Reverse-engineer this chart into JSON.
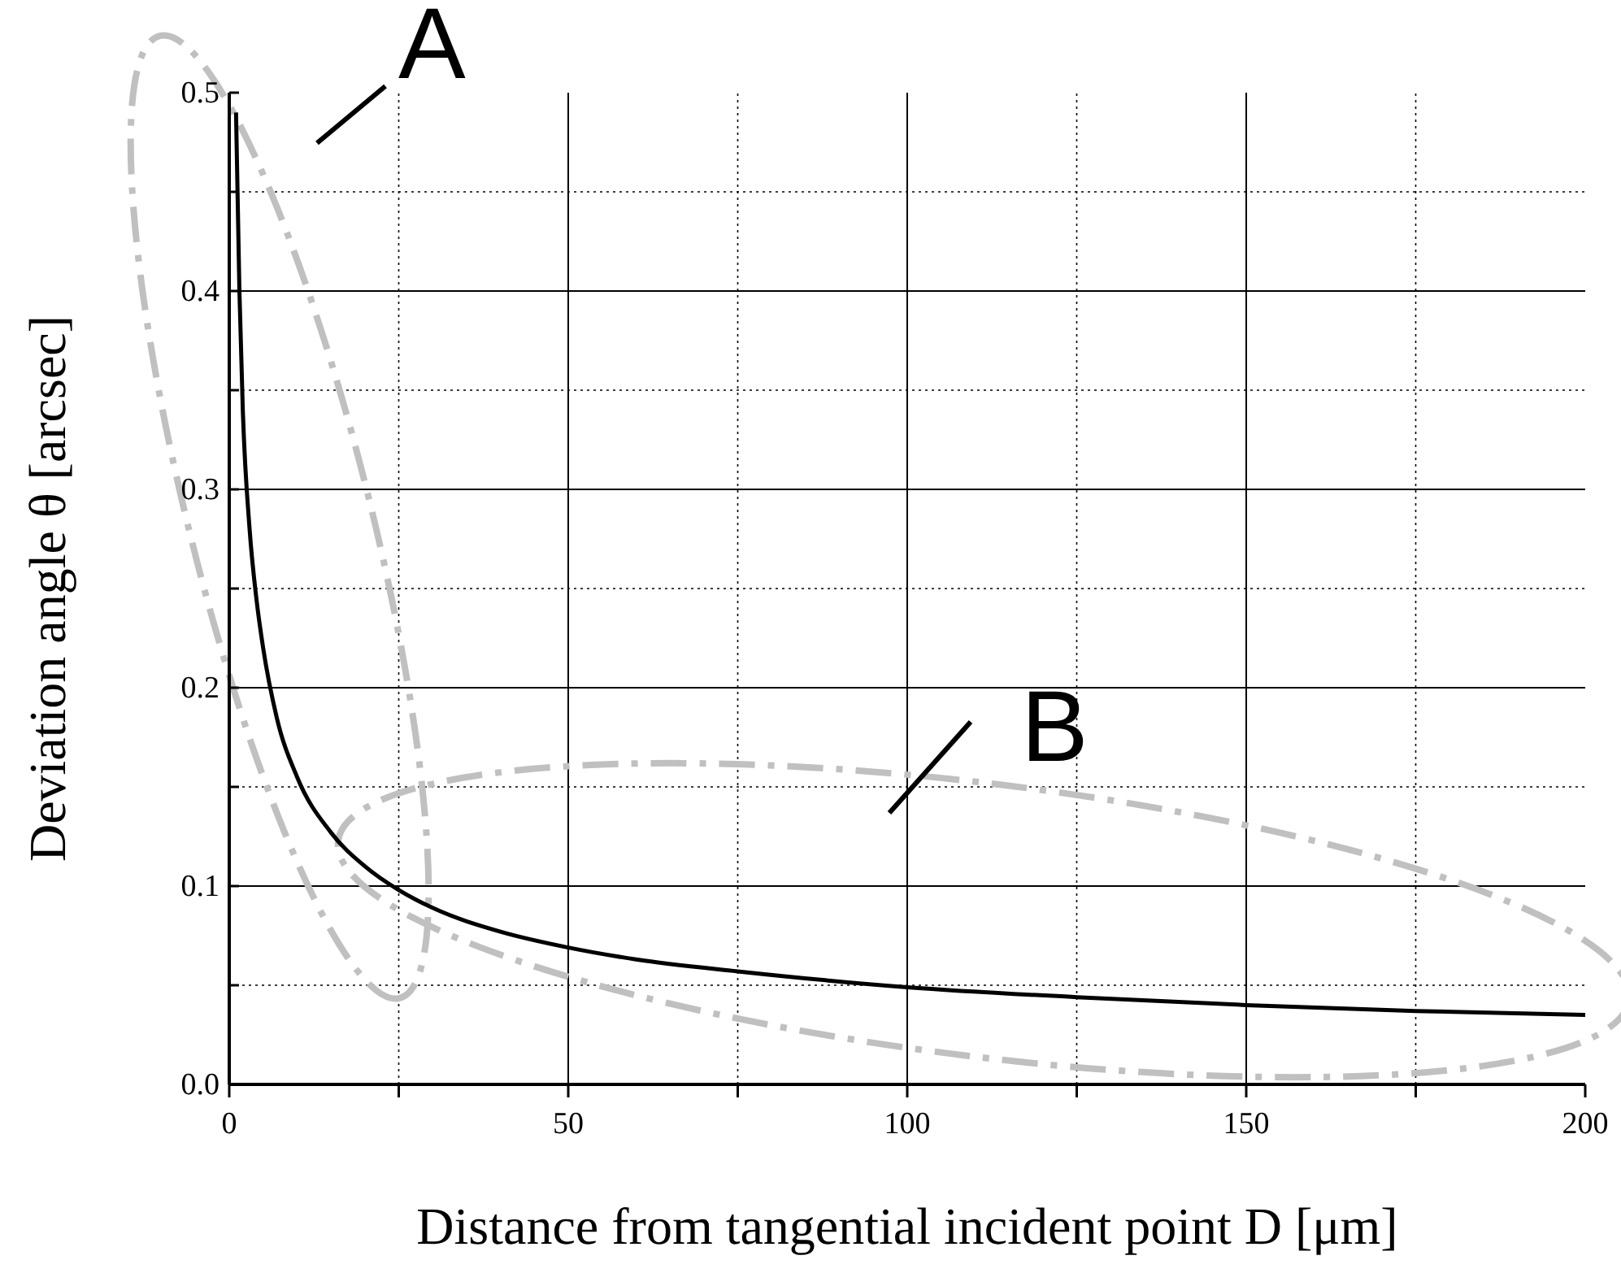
{
  "chart_data": {
    "type": "line",
    "xlabel": "Distance from tangential incident point D [μm]",
    "ylabel": "Deviation angle θ [arcsec]",
    "annotations": [
      "A",
      "B"
    ],
    "x": [
      1,
      1.5,
      2,
      3,
      4,
      5,
      7,
      10,
      15,
      20,
      25,
      30,
      40,
      50,
      60,
      75,
      100,
      125,
      150,
      175,
      200
    ],
    "series": [
      {
        "color": "#000000",
        "values": [
          0.49,
          0.4,
          0.34,
          0.28,
          0.245,
          0.22,
          0.185,
          0.155,
          0.127,
          0.11,
          0.098,
          0.089,
          0.077,
          0.069,
          0.063,
          0.057,
          0.049,
          0.044,
          0.04,
          0.037,
          0.035
        ]
      }
    ],
    "xlim": [
      0,
      200
    ],
    "xticks": [
      0,
      {
        "value": 25,
        "label": null
      },
      50,
      {
        "value": 75,
        "label": null
      },
      100,
      {
        "value": 125,
        "label": null
      },
      150,
      {
        "value": 175,
        "label": null
      },
      200
    ],
    "ylim": [
      0,
      0.5
    ],
    "yticks": [
      {
        "value": 0,
        "label": "0.0"
      },
      {
        "value": 0.05,
        "label": null
      },
      0.1,
      {
        "value": 0.15,
        "label": null
      },
      0.2,
      {
        "value": 0.25,
        "label": null
      },
      0.3,
      {
        "value": 0.35,
        "label": null
      },
      0.4,
      {
        "value": 0.45,
        "label": null
      },
      0.5
    ],
    "grid": true,
    "line_style": "solid",
    "marker": "none"
  }
}
